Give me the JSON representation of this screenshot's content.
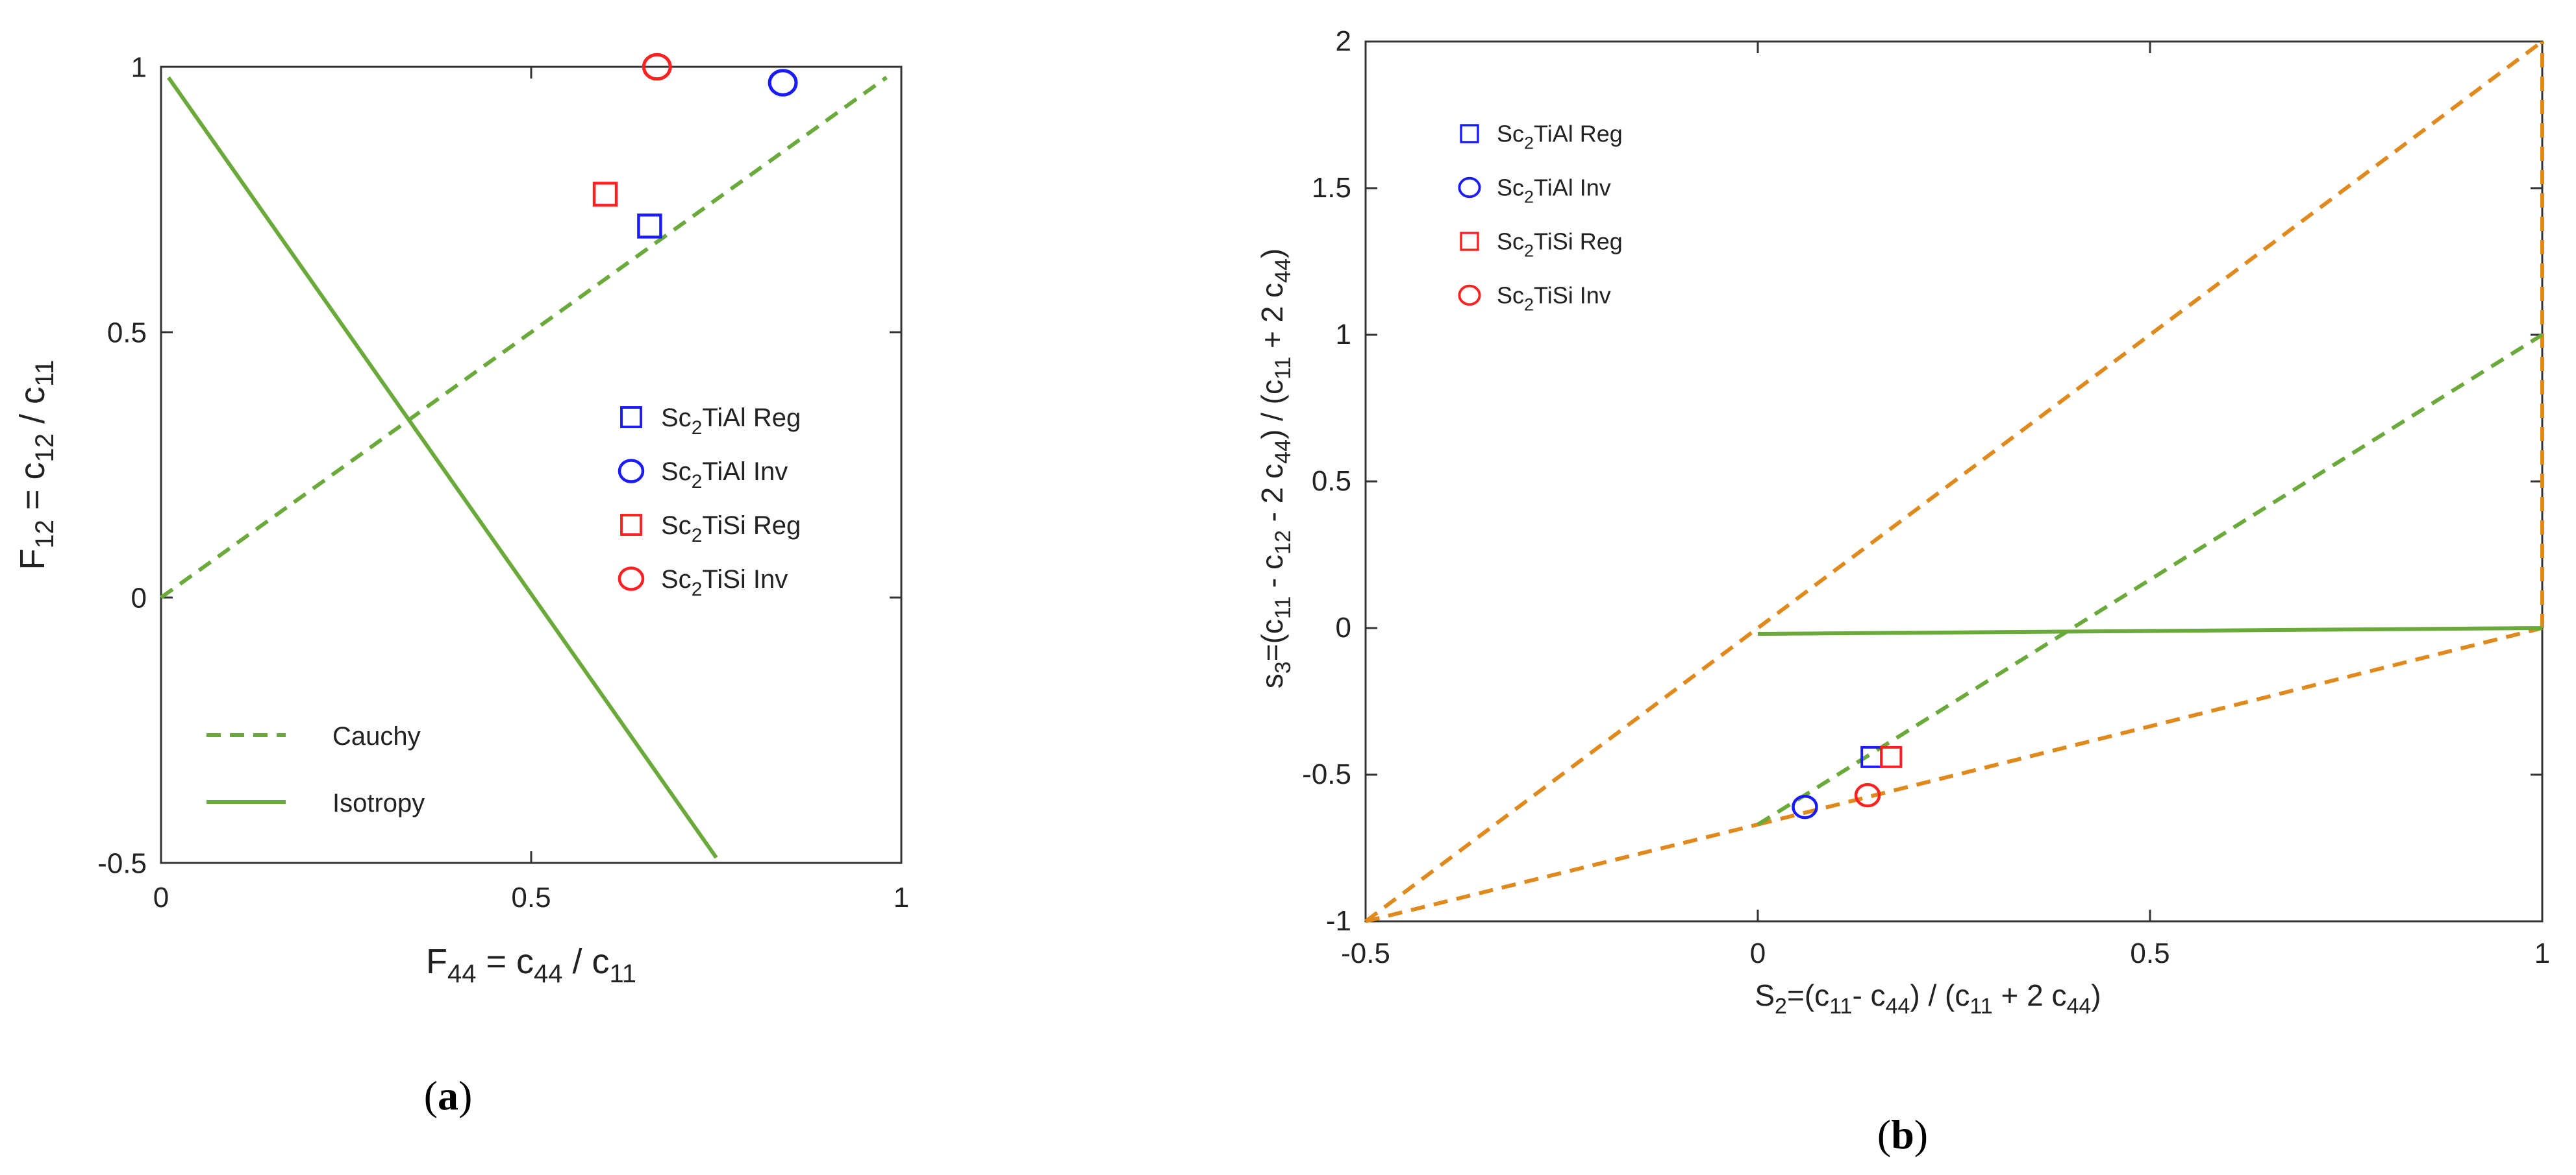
{
  "figure": {
    "panel_a_label": "a",
    "panel_b_label": "b"
  },
  "chart_data": [
    {
      "type": "scatter",
      "panel": "a",
      "title": "",
      "xlabel": "F44 = c44 / c11",
      "ylabel": "F12 = c12 / c11",
      "xlim": [
        0,
        1
      ],
      "ylim": [
        -0.5,
        1
      ],
      "xticks": [
        "0",
        "0.5",
        "1"
      ],
      "yticks": [
        "-0.5",
        "0",
        "0.5",
        "1"
      ],
      "grid": false,
      "series": [
        {
          "name": "Sc2TiAl Reg",
          "marker": "square",
          "color": "#1a1aff",
          "x": [
            0.66
          ],
          "y": [
            0.7
          ]
        },
        {
          "name": "Sc2TiAl Inv",
          "marker": "circle",
          "color": "#1a1aff",
          "x": [
            0.84
          ],
          "y": [
            0.97
          ]
        },
        {
          "name": "Sc2TiSi Reg",
          "marker": "square",
          "color": "#ff2020",
          "x": [
            0.6
          ],
          "y": [
            0.76
          ]
        },
        {
          "name": "Sc2TiSi Inv",
          "marker": "circle",
          "color": "#ff2020",
          "x": [
            0.67
          ],
          "y": [
            1.0
          ]
        }
      ],
      "lines": [
        {
          "name": "Cauchy",
          "style": "dashed",
          "color": "#6aaa3a",
          "x": [
            0,
            0.98
          ],
          "y": [
            0,
            0.98
          ]
        },
        {
          "name": "Isotropy",
          "style": "solid",
          "color": "#6aaa3a",
          "x": [
            0.01,
            0.75
          ],
          "y": [
            0.98,
            -0.49
          ]
        }
      ],
      "legend": {
        "markers_position": "center-right",
        "lines_position": "bottom-left",
        "markers": [
          {
            "base": "Sc",
            "sub": "2",
            "rest": "TiAl Reg",
            "marker": "square",
            "color": "#1a1aff"
          },
          {
            "base": "Sc",
            "sub": "2",
            "rest": "TiAl Inv",
            "marker": "circle",
            "color": "#1a1aff"
          },
          {
            "base": "Sc",
            "sub": "2",
            "rest": "TiSi Reg",
            "marker": "square",
            "color": "#ff2020"
          },
          {
            "base": "Sc",
            "sub": "2",
            "rest": "TiSi Inv",
            "marker": "circle",
            "color": "#ff2020"
          }
        ],
        "lines": [
          {
            "label": "Cauchy",
            "style": "dashed",
            "color": "#6aaa3a"
          },
          {
            "label": "Isotropy",
            "style": "solid",
            "color": "#6aaa3a"
          }
        ]
      }
    },
    {
      "type": "scatter",
      "panel": "b",
      "title": "",
      "xlabel": "S2=(c11- c44) / (c11 + 2 c44)",
      "ylabel": "s3=(c11 - c12 - 2 c44) / (c11 + 2 c44)",
      "xlim": [
        -0.5,
        1
      ],
      "ylim": [
        -1,
        2
      ],
      "xticks": [
        "-0.5",
        "0",
        "0.5",
        "1"
      ],
      "yticks": [
        "-1",
        "-0.5",
        "0",
        "0.5",
        "1",
        "1.5",
        "2"
      ],
      "grid": false,
      "series": [
        {
          "name": "Sc2TiAl Reg",
          "marker": "square",
          "color": "#1a1aff",
          "x": [
            0.145
          ],
          "y": [
            -0.44
          ]
        },
        {
          "name": "Sc2TiAl Inv",
          "marker": "circle",
          "color": "#1a1aff",
          "x": [
            0.06
          ],
          "y": [
            -0.61
          ]
        },
        {
          "name": "Sc2TiSi Reg",
          "marker": "square",
          "color": "#ff2020",
          "x": [
            0.17
          ],
          "y": [
            -0.44
          ]
        },
        {
          "name": "Sc2TiSi Inv",
          "marker": "circle",
          "color": "#ff2020",
          "x": [
            0.14
          ],
          "y": [
            -0.57
          ]
        }
      ],
      "lines": [
        {
          "name": "boundary-upper",
          "style": "dashed",
          "color": "#e08a1e",
          "x": [
            -0.5,
            1
          ],
          "y": [
            -1,
            2
          ]
        },
        {
          "name": "boundary-lower-left",
          "style": "dashed",
          "color": "#e08a1e",
          "x": [
            -0.5,
            0
          ],
          "y": [
            -1,
            -0.67
          ]
        },
        {
          "name": "boundary-lower-right",
          "style": "dashed",
          "color": "#e08a1e",
          "x": [
            0,
            1
          ],
          "y": [
            -0.67,
            0
          ]
        },
        {
          "name": "boundary-right",
          "style": "dashed",
          "color": "#e08a1e",
          "x": [
            1,
            1
          ],
          "y": [
            0,
            2
          ]
        },
        {
          "name": "cauchy",
          "style": "dashed",
          "color": "#6aaa3a",
          "x": [
            0,
            1
          ],
          "y": [
            -0.67,
            1
          ]
        },
        {
          "name": "isotropy",
          "style": "solid",
          "color": "#6aaa3a",
          "x": [
            0,
            1
          ],
          "y": [
            -0.02,
            0
          ]
        }
      ],
      "legend": {
        "position": "top-left",
        "markers": [
          {
            "base": "Sc",
            "sub": "2",
            "rest": "TiAl Reg",
            "marker": "square",
            "color": "#1a1aff"
          },
          {
            "base": "Sc",
            "sub": "2",
            "rest": "TiAl Inv",
            "marker": "circle",
            "color": "#1a1aff"
          },
          {
            "base": "Sc",
            "sub": "2",
            "rest": "TiSi Reg",
            "marker": "square",
            "color": "#ff2020"
          },
          {
            "base": "Sc",
            "sub": "2",
            "rest": "TiSi Inv",
            "marker": "circle",
            "color": "#ff2020"
          }
        ]
      }
    }
  ]
}
